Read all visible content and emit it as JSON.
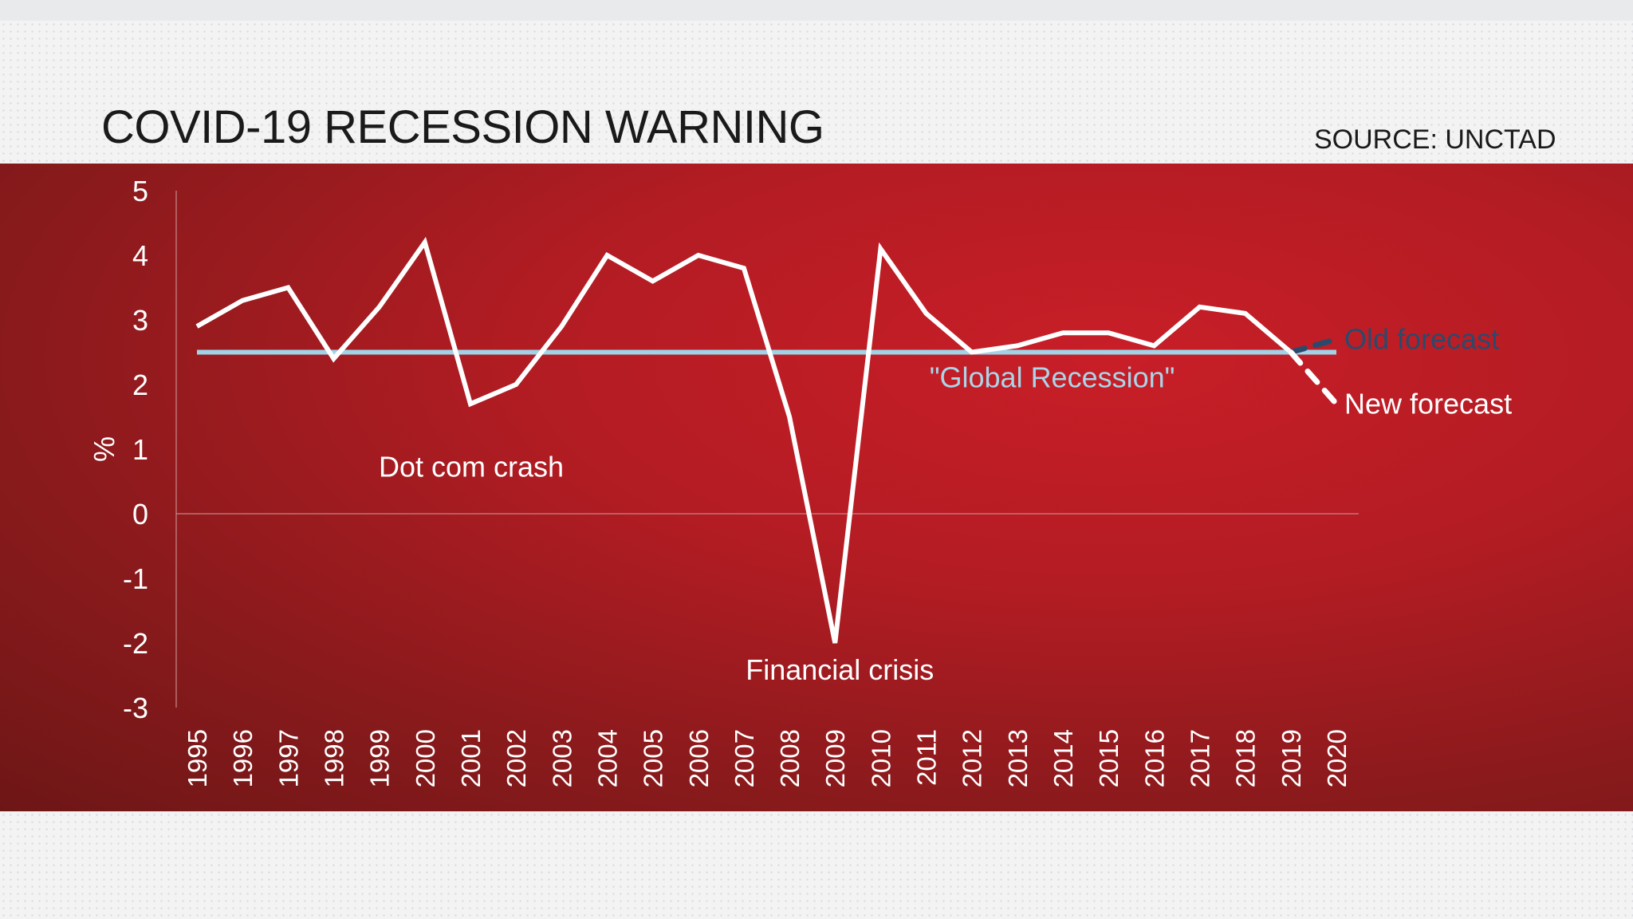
{
  "header": {
    "title": "COVID-19 RECESSION WARNING",
    "source": "SOURCE: UNCTAD"
  },
  "colors": {
    "background_band": "#b41c23",
    "series_line": "#ffffff",
    "threshold_line": "#9fd3e6",
    "old_forecast": "#2b4a6b"
  },
  "chart_data": {
    "type": "line",
    "title": "COVID-19 RECESSION WARNING",
    "ylabel": "%",
    "xlabel": "",
    "ylim": [
      -3,
      5
    ],
    "yticks": [
      "5",
      "4",
      "3",
      "2",
      "1",
      "0",
      "-1",
      "-2",
      "-3"
    ],
    "x": [
      "1995",
      "1996",
      "1997",
      "1998",
      "1999",
      "2000",
      "2001",
      "2002",
      "2003",
      "2004",
      "2005",
      "2006",
      "2007",
      "2008",
      "2009",
      "2010",
      "2011",
      "2012",
      "2013",
      "2014",
      "2015",
      "2016",
      "2017",
      "2018",
      "2019",
      "2020"
    ],
    "series": [
      {
        "values": [
          2.9,
          3.3,
          3.5,
          2.4,
          3.2,
          4.2,
          1.7,
          2.0,
          2.9,
          4.0,
          3.6,
          4.0,
          3.8,
          1.5,
          -2.0,
          4.1,
          3.1,
          2.5,
          2.6,
          2.8,
          2.8,
          2.6,
          3.2,
          3.1,
          2.5,
          null
        ]
      },
      {
        "name": "Old forecast",
        "x": [
          "2019",
          "2020"
        ],
        "values": [
          2.5,
          2.7
        ],
        "style": "dashed"
      },
      {
        "name": "New forecast",
        "x": [
          "2019",
          "2020"
        ],
        "values": [
          2.5,
          1.7
        ],
        "style": "dashed"
      }
    ],
    "threshold": {
      "value": 2.5,
      "label": "\"Global Recession\""
    },
    "annotations": [
      {
        "text": "Dot com crash",
        "year": "2001"
      },
      {
        "text": "Financial crisis",
        "year": "2009"
      }
    ],
    "grid": false,
    "zero_line": true
  }
}
